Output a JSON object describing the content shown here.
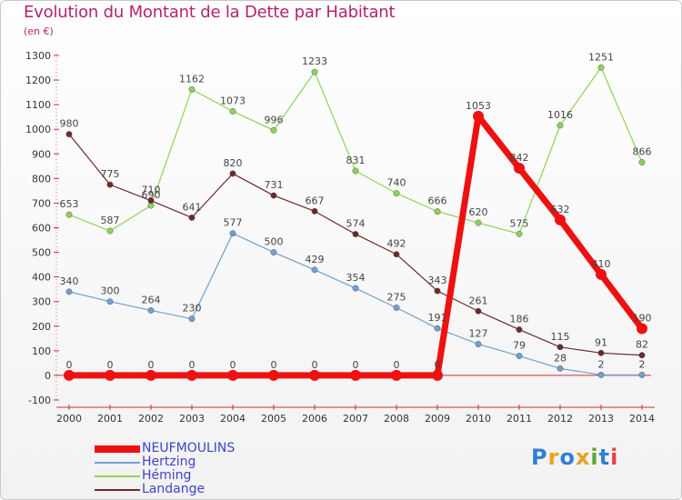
{
  "header": {
    "title": "Evolution du Montant de la Dette par Habitant",
    "unit": "(en €)"
  },
  "chart_data": {
    "type": "line",
    "x": [
      "2000",
      "2001",
      "2002",
      "2003",
      "2004",
      "2005",
      "2006",
      "2007",
      "2008",
      "2009",
      "2010",
      "2011",
      "2012",
      "2013",
      "2014"
    ],
    "ylim": [
      -100,
      1300
    ],
    "yticks": [
      -100,
      0,
      100,
      200,
      300,
      400,
      500,
      600,
      700,
      800,
      900,
      1000,
      1100,
      1200,
      1300
    ],
    "grid": false,
    "legend_position": "bottom-left",
    "series": [
      {
        "name": "NEUFMOULINS",
        "color": "#ee1111",
        "values": [
          0,
          0,
          0,
          0,
          0,
          0,
          0,
          0,
          0,
          0,
          1053,
          842,
          632,
          410,
          190
        ]
      },
      {
        "name": "Hertzing",
        "color": "#6fa1d2",
        "values": [
          340,
          300,
          264,
          230,
          577,
          500,
          429,
          354,
          275,
          191,
          127,
          79,
          28,
          2,
          2
        ]
      },
      {
        "name": "Héming",
        "color": "#8ed356",
        "values": [
          653,
          587,
          690,
          1162,
          1073,
          996,
          1233,
          831,
          740,
          666,
          620,
          575,
          1016,
          1251,
          866
        ]
      },
      {
        "name": "Landange",
        "color": "#6b2a2a",
        "values": [
          980,
          775,
          710,
          641,
          820,
          731,
          667,
          574,
          492,
          343,
          261,
          186,
          115,
          91,
          82
        ]
      }
    ],
    "labels": {
      "NEUFMOULINS": [
        "0",
        "0",
        "0",
        "0",
        "0",
        "0",
        "0",
        "0",
        "0",
        "0",
        "1053",
        "842",
        "632",
        "410",
        "190"
      ],
      "Hertzing": [
        "340",
        "300",
        "264",
        "230",
        "577",
        "500",
        "429",
        "354",
        "275",
        "191",
        "127",
        "79",
        "28",
        "2",
        "2"
      ],
      "Héming": [
        "653",
        "587",
        "690",
        "1162",
        "1073",
        "996",
        "1233",
        "831",
        "740",
        "666",
        "620",
        "575",
        "1016",
        "1251",
        "866"
      ],
      "Landange": [
        "980",
        "775",
        "710",
        "641",
        "820",
        "731",
        "667",
        "574",
        "492",
        "343",
        "261",
        "186",
        "115",
        "91",
        "82"
      ]
    }
  },
  "legend": {
    "items": [
      {
        "label": "NEUFMOULINS",
        "color": "#ee1111"
      },
      {
        "label": "Hertzing",
        "color": "#6fa1d2"
      },
      {
        "label": "Héming",
        "color": "#8ed356"
      },
      {
        "label": "Landange",
        "color": "#6b2a2a"
      }
    ],
    "label_color": "#3b46c9"
  },
  "logo": {
    "letters": [
      "P",
      "r",
      "o",
      "x",
      "i",
      "t",
      "i"
    ],
    "colors": [
      "#2f7fd6",
      "#f0a020",
      "#2f7fd6",
      "#e8a020",
      "#5aa832",
      "#2f7fd6",
      "#e84040"
    ]
  }
}
